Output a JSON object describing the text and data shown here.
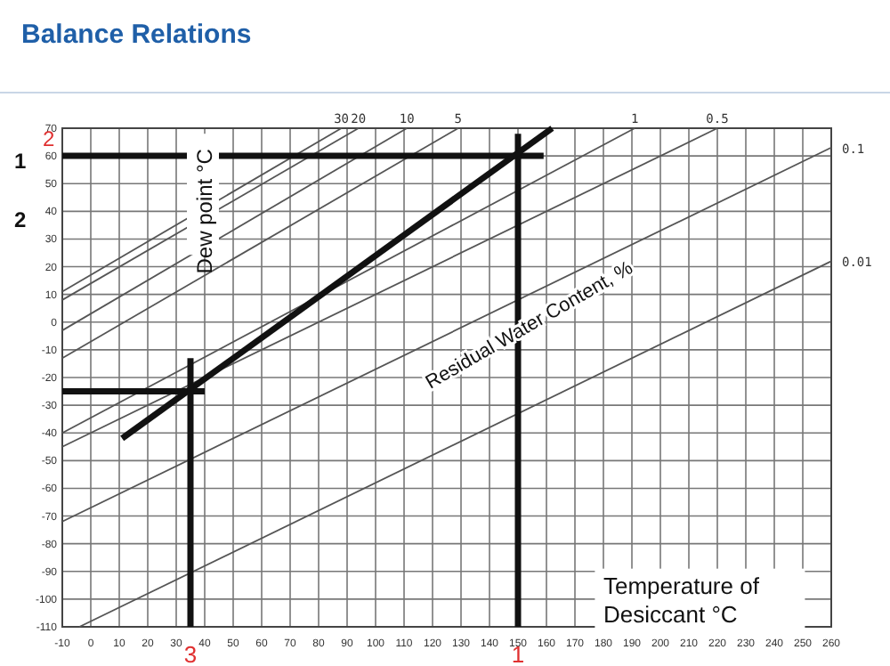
{
  "chart_data": {
    "type": "line",
    "title": "Balance Relations",
    "xlabel": "Temperature of Desiccant °C",
    "ylabel": "Dew point °C",
    "xlim": [
      -10,
      260
    ],
    "xticks": [
      -10,
      0,
      10,
      20,
      30,
      40,
      50,
      60,
      70,
      80,
      90,
      100,
      110,
      120,
      130,
      140,
      150,
      160,
      170,
      180,
      190,
      200,
      210,
      220,
      230,
      240,
      250,
      260
    ],
    "ylim": [
      -110,
      70
    ],
    "yticks": [
      -110,
      -100,
      -90,
      -80,
      -70,
      -60,
      -50,
      -40,
      -30,
      -20,
      -10,
      0,
      10,
      20,
      30,
      40,
      50,
      60,
      70
    ],
    "grid": true,
    "marker": "none",
    "series": [
      {
        "name": "30",
        "color": "#555555",
        "x": [
          -10,
          88
        ],
        "values": [
          11,
          70
        ]
      },
      {
        "name": "20",
        "color": "#555555",
        "x": [
          -10,
          94
        ],
        "values": [
          8,
          70
        ]
      },
      {
        "name": "10",
        "color": "#555555",
        "x": [
          -10,
          111
        ],
        "values": [
          -3,
          70
        ]
      },
      {
        "name": "5",
        "color": "#555555",
        "x": [
          -10,
          129
        ],
        "values": [
          -13,
          70
        ]
      },
      {
        "name": "1",
        "color": "#555555",
        "x": [
          -10,
          191
        ],
        "values": [
          -40,
          70
        ]
      },
      {
        "name": "0.5",
        "color": "#555555",
        "x": [
          -10,
          220
        ],
        "values": [
          -45,
          70
        ]
      },
      {
        "name": "0.1",
        "color": "#555555",
        "x": [
          -10,
          260
        ],
        "values": [
          -72,
          63
        ]
      },
      {
        "name": "0.01",
        "color": "#555555",
        "x": [
          -4,
          260
        ],
        "values": [
          -110,
          22
        ]
      },
      {
        "color": "#111111",
        "x": [
          -10,
          159
        ],
        "values": [
          60,
          60
        ]
      },
      {
        "color": "#111111",
        "x": [
          150,
          150
        ],
        "values": [
          68,
          -110
        ]
      },
      {
        "color": "#111111",
        "x": [
          11,
          162
        ],
        "values": [
          -42,
          70
        ]
      },
      {
        "color": "#111111",
        "x": [
          -10,
          40
        ],
        "values": [
          -25,
          -25
        ]
      },
      {
        "color": "#111111",
        "x": [
          35,
          35
        ],
        "values": [
          -13,
          -110
        ]
      }
    ],
    "annotations": [
      "Residual Water Content, %",
      "1",
      "2",
      "2",
      "1",
      "3"
    ]
  }
}
